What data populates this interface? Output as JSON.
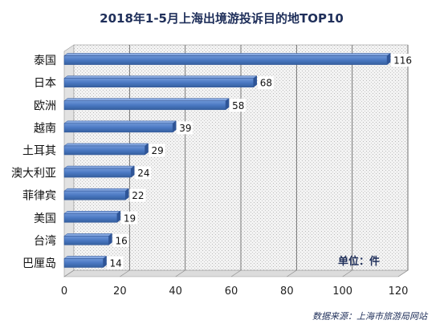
{
  "chart_data": {
    "type": "bar",
    "orientation": "horizontal",
    "title": "2018年1-5月上海出境游投诉目的地TOP10",
    "categories": [
      "泰国",
      "日本",
      "欧洲",
      "越南",
      "土耳其",
      "澳大利亚",
      "菲律宾",
      "美国",
      "台湾",
      "巴厘岛"
    ],
    "values": [
      116,
      68,
      58,
      39,
      29,
      24,
      22,
      19,
      16,
      14
    ],
    "xlim": [
      0,
      120
    ],
    "x_ticks": [
      0,
      20,
      40,
      60,
      80,
      100,
      120
    ],
    "grid": true,
    "legend": "none",
    "unit_note": "单位：件",
    "source_note": "数据来源：上海市旅游局网站",
    "colors": {
      "bar": "#4a78c2",
      "bar_edge": "#2f5597",
      "title": "#1f2f5a",
      "plot_bg": "#eeeeee"
    }
  }
}
